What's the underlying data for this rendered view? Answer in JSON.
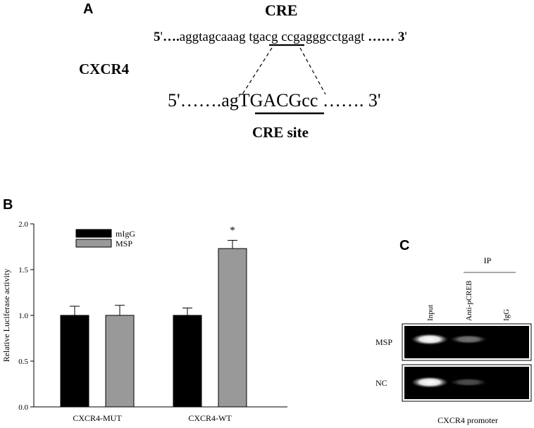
{
  "panel_a": {
    "letter": "A",
    "cre_title": "CRE",
    "gene_label": "CXCR4",
    "seq1": {
      "five": "5",
      "prime": "'",
      "dots_left": "….",
      "left": "aggtagcaaag ",
      "motif": "tgacg",
      "right": " ccgagggcctgagt ",
      "dots_right": "…… ",
      "three": "3",
      "prime2": "'"
    },
    "seq2": {
      "five": "5",
      "prime": "'",
      "dots_left": "…….",
      "left": "ag",
      "motif": "TGACG",
      "right": "cc",
      "dots_right": " ……. ",
      "three": "3",
      "prime2": "'"
    },
    "site_label": "CRE site"
  },
  "panel_b": {
    "letter": "B"
  },
  "panel_c": {
    "letter": "C",
    "ip_label": "IP",
    "lanes": [
      "Input",
      "Anti-pCREB",
      "IgG"
    ],
    "rows": [
      "MSP",
      "NC"
    ],
    "caption": "CXCR4 promoter",
    "band_intensity": {
      "MSP": [
        1.0,
        0.45,
        0.0
      ],
      "NC": [
        1.0,
        0.3,
        0.0
      ]
    }
  },
  "chart_data": {
    "type": "bar",
    "categories": [
      "CXCR4-MUT",
      "CXCR4-WT"
    ],
    "series": [
      {
        "name": "mIgG",
        "values": [
          1.0,
          1.0
        ],
        "errors": [
          0.1,
          0.08
        ],
        "color": "#000000"
      },
      {
        "name": "MSP",
        "values": [
          1.0,
          1.73
        ],
        "errors": [
          0.11,
          0.09
        ],
        "color": "#999999"
      }
    ],
    "ylabel": "Relative Luciferase activity",
    "xlabel": "",
    "ylim": [
      0.0,
      2.0
    ],
    "yticks": [
      "0.0",
      "0.5",
      "1.0",
      "1.5",
      "2.0"
    ],
    "annotation": "*",
    "legend": "top-left"
  }
}
